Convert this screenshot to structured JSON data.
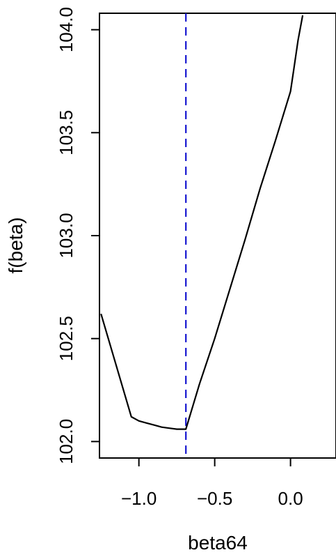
{
  "chart_data": {
    "type": "line",
    "title": "",
    "xlabel": "beta64",
    "ylabel": "f(beta)",
    "xlim": [
      -1.26,
      0.3
    ],
    "ylim": [
      101.92,
      104.08
    ],
    "x_ticks": [
      -1.0,
      -0.5,
      0.0
    ],
    "x_tick_labels": [
      "−1.0",
      "−0.5",
      "0.0"
    ],
    "y_ticks": [
      102.0,
      102.5,
      103.0,
      103.5,
      104.0
    ],
    "y_tick_labels": [
      "102.0",
      "102.5",
      "103.0",
      "103.5",
      "104.0"
    ],
    "series": [
      {
        "color": "#000000",
        "x": [
          -1.25,
          -1.05,
          -1.0,
          -0.95,
          -0.9,
          -0.85,
          -0.8,
          -0.75,
          -0.7,
          -0.69,
          -0.6,
          -0.5,
          -0.4,
          -0.3,
          -0.2,
          -0.1,
          0.0,
          0.02,
          0.05,
          0.08
        ],
        "y": [
          102.62,
          102.12,
          102.1,
          102.09,
          102.08,
          102.07,
          102.065,
          102.06,
          102.06,
          102.06,
          102.28,
          102.5,
          102.74,
          102.98,
          103.23,
          103.46,
          103.7,
          103.8,
          103.95,
          104.07
        ]
      }
    ],
    "vline": {
      "x": -0.69,
      "color": "#0000cc",
      "style": "dashed"
    },
    "grid": false,
    "legend": "none"
  }
}
